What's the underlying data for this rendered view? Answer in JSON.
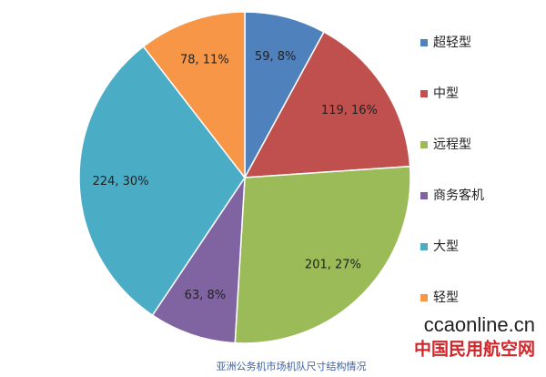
{
  "chart_data": {
    "type": "pie",
    "categories": [
      "超轻型",
      "中型",
      "远程型",
      "商务客机",
      "大型",
      "轻型"
    ],
    "values": [
      59,
      119,
      201,
      63,
      224,
      78
    ],
    "value_labels": [
      "59, 8%",
      "119, 16%",
      "201, 27%",
      "63, 8%",
      "224, 30%",
      "78, 11%"
    ],
    "colors": [
      "#4f81bd",
      "#c0504d",
      "#9bbb59",
      "#8064a2",
      "#4bacc6",
      "#f79646"
    ],
    "legend": "right",
    "caption": "亚洲公务机市场机队尺寸结构情况"
  },
  "watermark": {
    "site": "ccaonline.cn",
    "name": "中国民用航空网"
  }
}
